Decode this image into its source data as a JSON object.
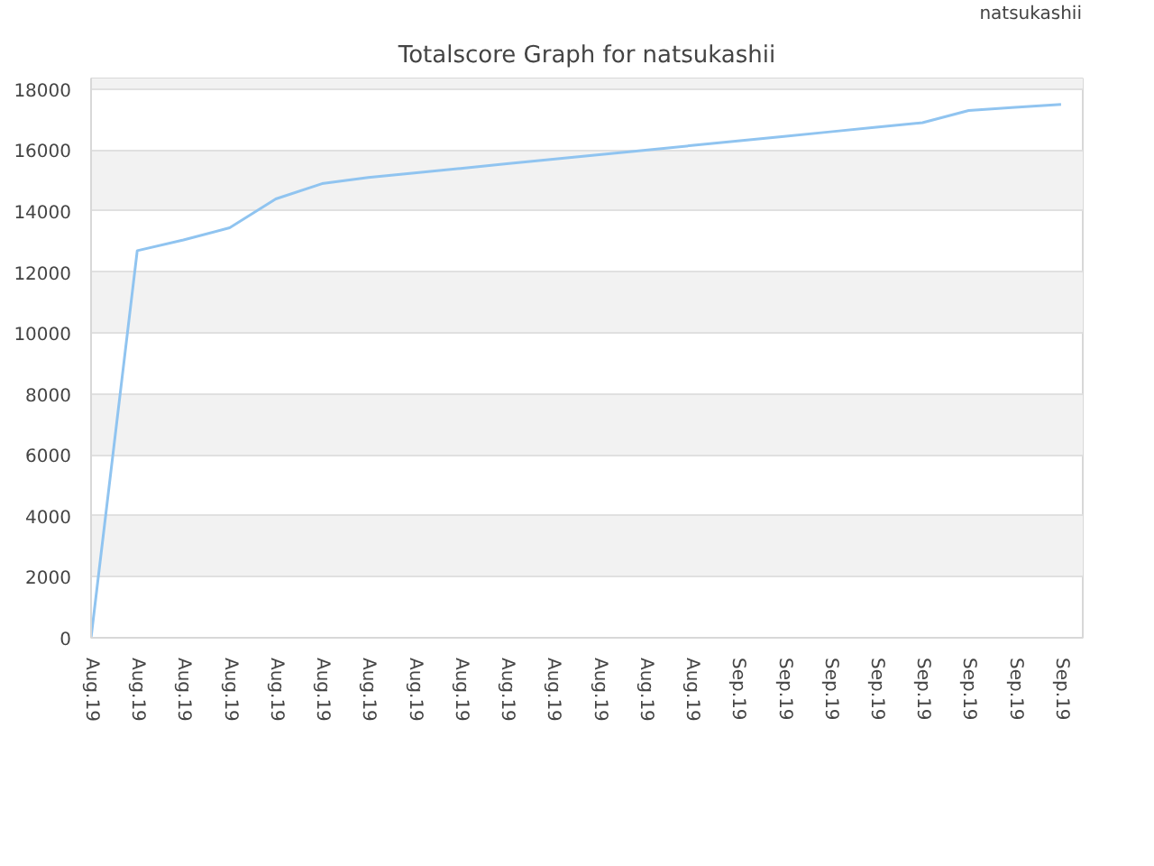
{
  "chart_data": {
    "type": "line",
    "title": "Totalscore Graph for natsukashii",
    "categories": [
      "Aug.19",
      "Aug.19",
      "Aug.19",
      "Aug.19",
      "Aug.19",
      "Aug.19",
      "Aug.19",
      "Aug.19",
      "Aug.19",
      "Aug.19",
      "Aug.19",
      "Aug.19",
      "Aug.19",
      "Aug.19",
      "Sep.19",
      "Sep.19",
      "Sep.19",
      "Sep.19",
      "Sep.19",
      "Sep.19",
      "Sep.19",
      "Sep.19"
    ],
    "series": [
      {
        "name": "natsukashii",
        "color": "#90c4f0",
        "values": [
          0,
          12700,
          13050,
          13450,
          14400,
          14900,
          15100,
          15250,
          15400,
          15550,
          15700,
          15850,
          16000,
          16150,
          16300,
          16450,
          16600,
          16750,
          16900,
          17300,
          17400,
          17500
        ]
      }
    ],
    "ylim": [
      0,
      18350
    ],
    "yticks": [
      0,
      2000,
      4000,
      6000,
      8000,
      10000,
      12000,
      14000,
      16000,
      18000
    ],
    "grid": "y",
    "legend": "top right",
    "marker": "none",
    "line_style": "solid"
  }
}
